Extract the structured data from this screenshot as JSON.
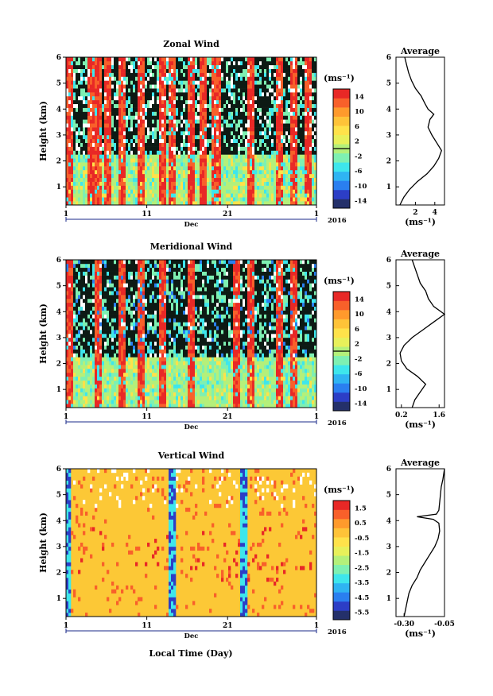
{
  "figure": {
    "xlabel": "Local Time (Day)",
    "month_label": "Dec",
    "year_label": "2016",
    "x_tick_labels": [
      "1",
      "11",
      "21",
      "1"
    ],
    "avg_title": "Average"
  },
  "colormap": [
    "#24306a",
    "#2c3ec6",
    "#2a7ff0",
    "#2fb4f2",
    "#3ee6ec",
    "#7ef0b2",
    "#b4f07a",
    "#e8f05a",
    "#ffe24a",
    "#ffc338",
    "#ff9a2c",
    "#f8602a",
    "#e82826"
  ],
  "chart_data": [
    {
      "type": "heatmap",
      "name": "zonal",
      "title": "Zonal Wind",
      "ylabel": "Height (km)",
      "x_range": [
        1,
        32
      ],
      "ylim": [
        0.3,
        6.0
      ],
      "y_ticks": [
        1,
        2,
        3,
        4,
        5,
        6
      ],
      "colorbar": {
        "unit": "(ms⁻¹)",
        "ticks": [
          "14",
          "10",
          "6",
          "2",
          "-2",
          "-6",
          "-10",
          "-14"
        ],
        "range": [
          -16,
          16
        ],
        "zero_line": true
      },
      "highlight_days": [
        1.3,
        4.0,
        5.1,
        6.2,
        8.0,
        10.4,
        13.0,
        14.0,
        16.5,
        18.0,
        19.6,
        24.0,
        27.5,
        29.3,
        30.9
      ],
      "average": {
        "xlim": [
          0,
          5
        ],
        "x_ticks": [
          "2",
          "4"
        ],
        "xlabel": "(ms⁻¹)",
        "heights": [
          0.3,
          0.6,
          0.9,
          1.2,
          1.5,
          1.8,
          2.1,
          2.4,
          2.7,
          3.0,
          3.3,
          3.6,
          3.8,
          4.0,
          4.2,
          4.5,
          4.8,
          5.1,
          5.4,
          5.7,
          6.0
        ],
        "values": [
          0.4,
          0.8,
          1.4,
          2.2,
          3.2,
          3.9,
          4.4,
          4.7,
          4.2,
          3.7,
          3.3,
          3.5,
          3.9,
          3.3,
          3.0,
          2.6,
          2.0,
          1.6,
          1.3,
          1.1,
          0.9
        ]
      }
    },
    {
      "type": "heatmap",
      "name": "meridional",
      "title": "Meridional Wind",
      "ylabel": "Height (km)",
      "x_range": [
        1,
        32
      ],
      "ylim": [
        0.3,
        6.0
      ],
      "y_ticks": [
        1,
        2,
        3,
        4,
        5,
        6
      ],
      "colorbar": {
        "unit": "(ms⁻¹)",
        "ticks": [
          "14",
          "10",
          "6",
          "2",
          "-2",
          "-6",
          "-10",
          "-14"
        ],
        "range": [
          -16,
          16
        ],
        "zero_line": true
      },
      "highlight_days": [
        1.3,
        5.1,
        7.8,
        10.4,
        13.0,
        16.5,
        22.0,
        24.0,
        27.5,
        29.3
      ],
      "average": {
        "xlim": [
          0,
          1.8
        ],
        "x_ticks": [
          "0.2",
          "1.6"
        ],
        "xlabel": "(ms⁻¹)",
        "heights": [
          0.3,
          0.6,
          0.9,
          1.2,
          1.5,
          1.8,
          2.1,
          2.4,
          2.7,
          3.0,
          3.3,
          3.6,
          3.9,
          4.2,
          4.5,
          4.8,
          5.1,
          5.4,
          5.7,
          6.0
        ],
        "values": [
          0.6,
          0.7,
          0.9,
          1.1,
          0.8,
          0.4,
          0.2,
          0.15,
          0.3,
          0.6,
          1.0,
          1.4,
          1.8,
          1.4,
          1.2,
          1.1,
          0.9,
          0.8,
          0.7,
          0.6
        ]
      }
    },
    {
      "type": "heatmap",
      "name": "vertical",
      "title": "Vertical Wind",
      "ylabel": "Height (km)",
      "x_range": [
        1,
        32
      ],
      "ylim": [
        0.3,
        6.0
      ],
      "y_ticks": [
        1,
        2,
        3,
        4,
        5,
        6
      ],
      "colorbar": {
        "unit": "(ms⁻¹)",
        "ticks": [
          "1.5",
          "0.5",
          "-0.5",
          "-1.5",
          "-2.5",
          "-3.5",
          "-4.5",
          "-5.5"
        ],
        "range": [
          -6,
          2
        ],
        "zero_line": false
      },
      "highlight_days": [
        1.1,
        14.1,
        23.1
      ],
      "average": {
        "xlim": [
          -0.35,
          -0.05
        ],
        "x_ticks": [
          "-0.30",
          "-0.05"
        ],
        "xlabel": "(ms⁻¹)",
        "heights": [
          0.3,
          0.6,
          0.9,
          1.2,
          1.5,
          1.8,
          2.1,
          2.4,
          2.7,
          3.0,
          3.3,
          3.6,
          3.9,
          4.05,
          4.15,
          4.25,
          4.4,
          4.7,
          5.0,
          5.3,
          5.6,
          6.0
        ],
        "values": [
          -0.3,
          -0.29,
          -0.28,
          -0.27,
          -0.25,
          -0.22,
          -0.2,
          -0.17,
          -0.14,
          -0.11,
          -0.09,
          -0.08,
          -0.085,
          -0.12,
          -0.22,
          -0.1,
          -0.085,
          -0.08,
          -0.075,
          -0.07,
          -0.06,
          -0.05
        ]
      }
    }
  ]
}
